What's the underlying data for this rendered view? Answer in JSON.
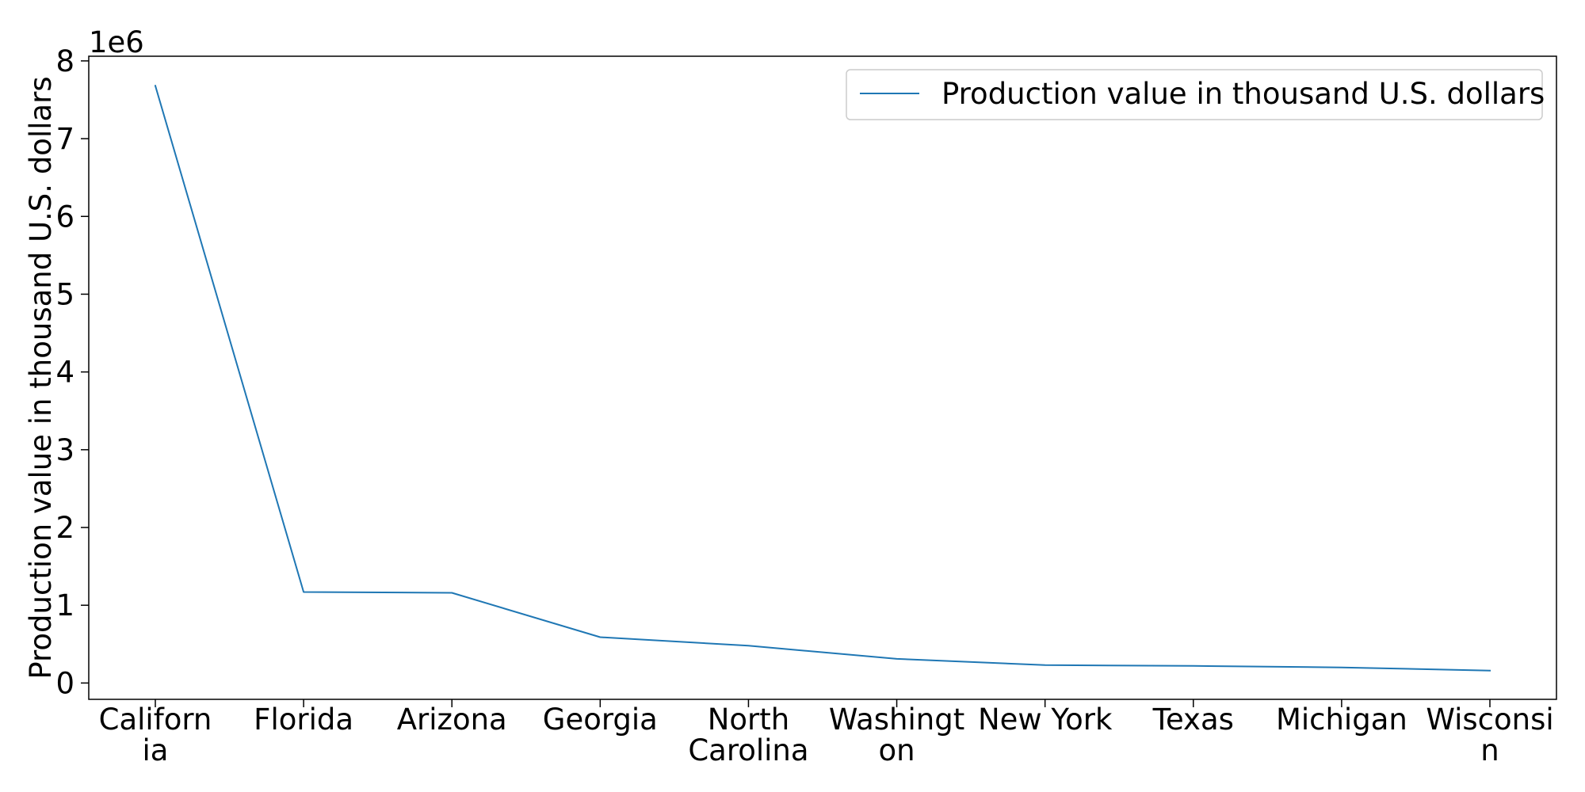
{
  "chart_data": {
    "type": "line",
    "categories": [
      [
        "Californ",
        "ia"
      ],
      [
        "Florida"
      ],
      [
        "Arizona"
      ],
      [
        "Georgia"
      ],
      [
        "North",
        "Carolina"
      ],
      [
        "Washingt",
        "on"
      ],
      [
        "New York"
      ],
      [
        "Texas"
      ],
      [
        "Michigan"
      ],
      [
        "Wisconsi",
        "n"
      ]
    ],
    "series": [
      {
        "name": "Production value in thousand U.S. dollars",
        "color": "#1f77b4",
        "values": [
          7680000,
          1170000,
          1160000,
          590000,
          480000,
          310000,
          230000,
          220000,
          200000,
          160000
        ]
      }
    ],
    "title": "",
    "xlabel": "",
    "ylabel": "Production value in thousand U.S. dollars",
    "y_offset_label": "1e6",
    "y_scale": 1000000,
    "y_ticks": [
      0,
      1,
      2,
      3,
      4,
      5,
      6,
      7,
      8
    ],
    "ylim": [
      -210000,
      8060000
    ],
    "grid": false,
    "legend_position": "upper right"
  }
}
